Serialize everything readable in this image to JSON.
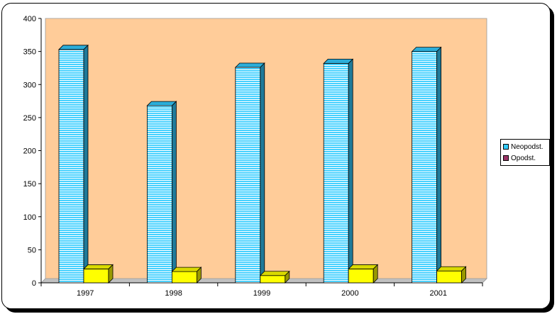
{
  "chart_data": {
    "type": "bar",
    "categories": [
      "1997",
      "1998",
      "1999",
      "2000",
      "2001"
    ],
    "series": [
      {
        "name": "Neopodst.",
        "values": [
          353,
          268,
          326,
          332,
          350
        ],
        "color": "#33ccff"
      },
      {
        "name": "Opodst.",
        "values": [
          21,
          17,
          11,
          21,
          18
        ],
        "color": "#ffff00"
      }
    ],
    "legend_swatch_colors": [
      "#33ccff",
      "#993366"
    ],
    "yticks": [
      "0",
      "50",
      "100",
      "150",
      "200",
      "250",
      "300",
      "350",
      "400"
    ],
    "ylim": [
      0,
      400
    ],
    "plot_background": "#ffcc99",
    "legend_position": "right"
  }
}
